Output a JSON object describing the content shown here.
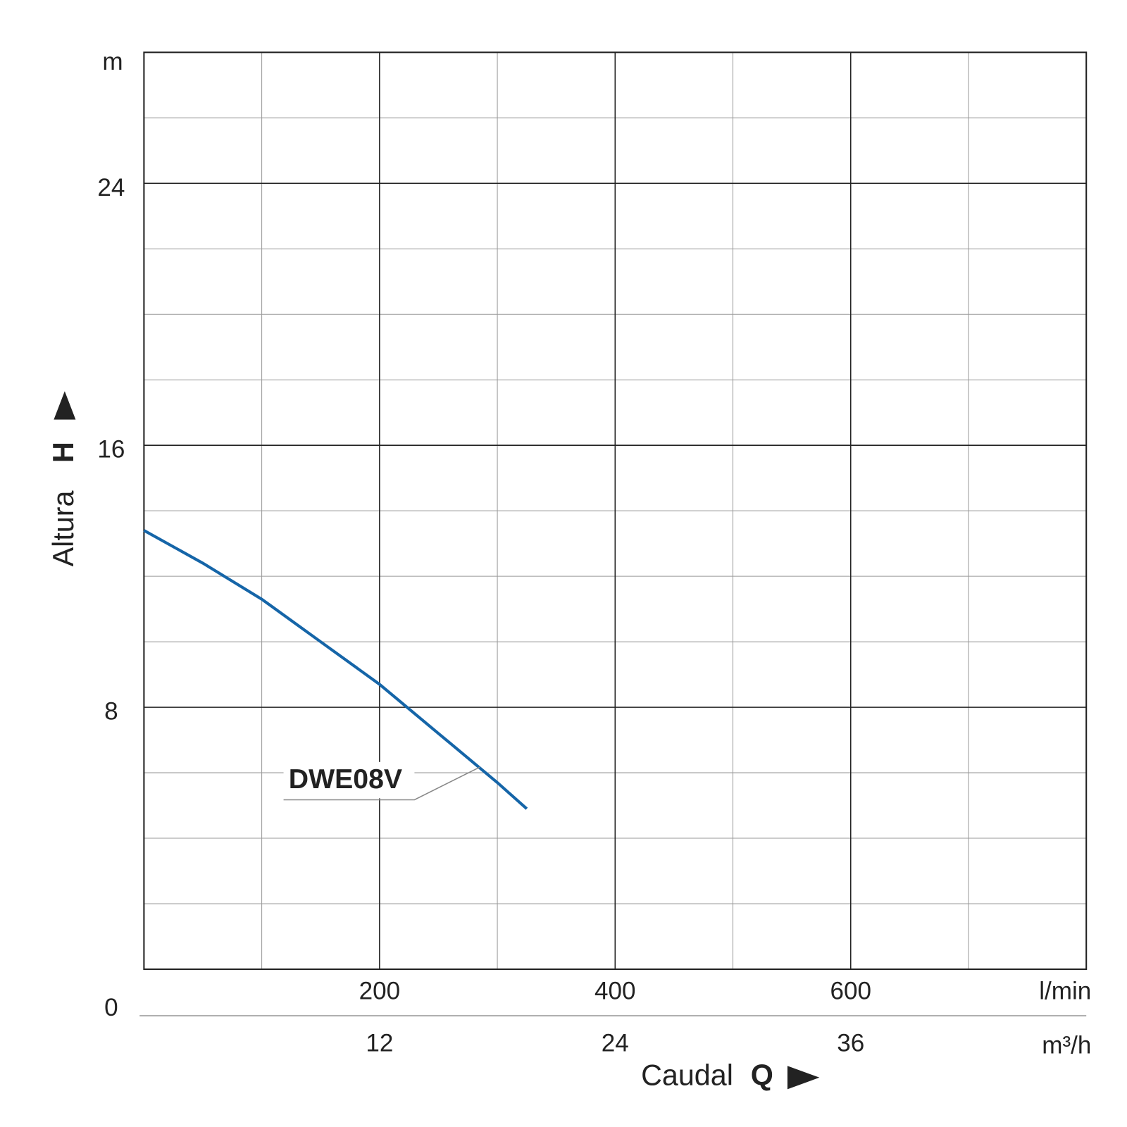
{
  "chart_data": {
    "type": "line",
    "x_label": "Caudal",
    "x_symbol": "Q",
    "x_unit": "l/min",
    "x2_unit": "m³/h",
    "y_label": "Altura",
    "y_symbol": "H",
    "y_unit": "m",
    "xlim": [
      0,
      800
    ],
    "xticks": [
      200,
      400,
      600
    ],
    "minor_xticks": [
      100,
      300,
      500,
      700
    ],
    "x2lim": [
      0,
      48
    ],
    "x2ticks": [
      12,
      24,
      36
    ],
    "ylim": [
      0,
      28
    ],
    "yticks": [
      0,
      8,
      16,
      24
    ],
    "minor_yticks": [
      2,
      4,
      6,
      10,
      12,
      14,
      18,
      20,
      22,
      26
    ],
    "grid": true,
    "series": [
      {
        "name": "DWE08V",
        "color": "#1565a8",
        "x": [
          0,
          50,
          100,
          150,
          200,
          250,
          300,
          325
        ],
        "values": [
          13.4,
          12.4,
          11.3,
          10.0,
          8.7,
          7.2,
          5.7,
          4.9
        ]
      }
    ]
  }
}
